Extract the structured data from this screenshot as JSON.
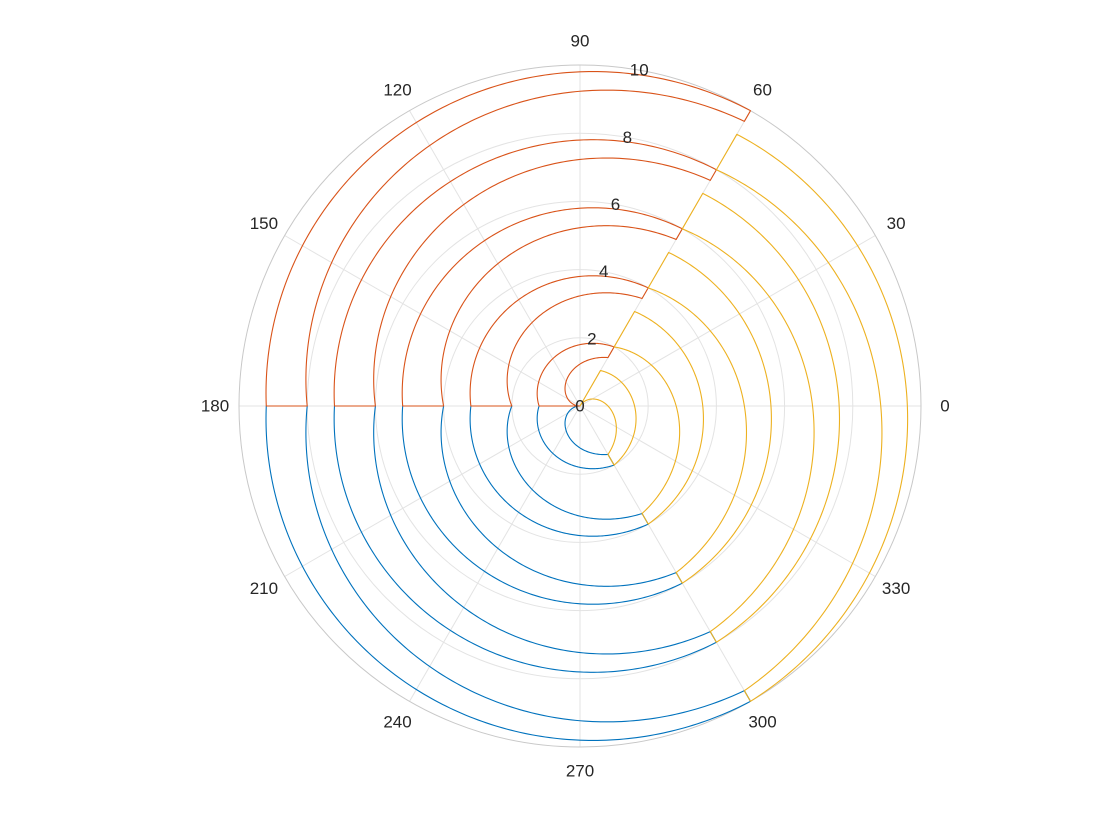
{
  "chart_data": {
    "type": "polar-line",
    "theta_zero": "right",
    "theta_direction": "counterclockwise",
    "theta_unit": "degrees",
    "theta_ticks": [
      0,
      30,
      60,
      90,
      120,
      150,
      180,
      210,
      240,
      270,
      300,
      330
    ],
    "theta_tick_labels": [
      "0",
      "30",
      "60",
      "90",
      "120",
      "150",
      "180",
      "210",
      "240",
      "270",
      "300",
      "330"
    ],
    "r_ticks": [
      0,
      2,
      4,
      6,
      8,
      10
    ],
    "r_tick_labels": [
      "0",
      "2",
      "4",
      "6",
      "8",
      "10"
    ],
    "r_tick_label_angle_deg": 80,
    "rlim": [
      0,
      10
    ],
    "grid": true,
    "legend": "none",
    "series": [
      {
        "color": "#0072BD",
        "petals": [
          {
            "theta_start": 180,
            "theta_end": 300,
            "r_inner": 0.0,
            "r_outer": 1.2
          },
          {
            "theta_start": 180,
            "theta_end": 300,
            "r_inner": 2.0,
            "r_outer": 3.2
          },
          {
            "theta_start": 180,
            "theta_end": 300,
            "r_inner": 4.0,
            "r_outer": 5.2
          },
          {
            "theta_start": 180,
            "theta_end": 300,
            "r_inner": 6.0,
            "r_outer": 7.2
          },
          {
            "theta_start": 180,
            "theta_end": 300,
            "r_inner": 8.0,
            "r_outer": 9.2
          }
        ]
      },
      {
        "color": "#D95319",
        "petals": [
          {
            "theta_start": 180,
            "theta_end": 60,
            "r_inner": 0.0,
            "r_outer": 1.2
          },
          {
            "theta_start": 180,
            "theta_end": 60,
            "r_inner": 2.0,
            "r_outer": 3.2
          },
          {
            "theta_start": 180,
            "theta_end": 60,
            "r_inner": 4.0,
            "r_outer": 5.2
          },
          {
            "theta_start": 180,
            "theta_end": 60,
            "r_inner": 6.0,
            "r_outer": 7.2
          },
          {
            "theta_start": 180,
            "theta_end": 60,
            "r_inner": 8.0,
            "r_outer": 9.2
          }
        ]
      },
      {
        "color": "#EDB120",
        "petals": [
          {
            "theta_start": 60,
            "theta_end": -60,
            "r_inner": 0.0,
            "r_outer": 1.2
          },
          {
            "theta_start": 60,
            "theta_end": -60,
            "r_inner": 2.0,
            "r_outer": 3.2
          },
          {
            "theta_start": 60,
            "theta_end": -60,
            "r_inner": 4.0,
            "r_outer": 5.2
          },
          {
            "theta_start": 60,
            "theta_end": -60,
            "r_inner": 6.0,
            "r_outer": 7.2
          },
          {
            "theta_start": 60,
            "theta_end": -60,
            "r_inner": 8.0,
            "r_outer": 9.2
          }
        ]
      }
    ]
  }
}
